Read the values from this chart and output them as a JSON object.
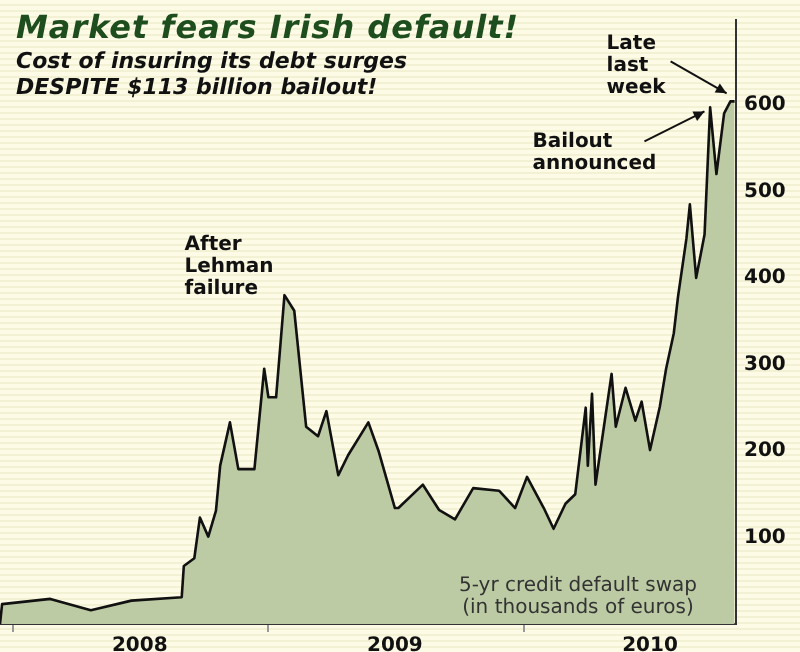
{
  "chart_data": {
    "type": "area",
    "title": "Market fears Irish default!",
    "subtitle": "Cost of insuring its debt surges\nDESPITE $113 billion bailout!",
    "annotations": [
      {
        "text": "After\nLehman\nfailure",
        "x": "2009-01-24",
        "y": 380
      },
      {
        "text": "Bailout\nannounced",
        "x": "2010-10-04",
        "y": 597
      },
      {
        "text": "Late\nlast\nweek",
        "x": "2010-10-30",
        "y": 604
      },
      "5-yr credit default swap\n(in thousands of euros)"
    ],
    "x": [
      "2007-12-14",
      "2007-12-17",
      "2008-02-24",
      "2008-04-22",
      "2008-06-19",
      "2008-08-30",
      "2008-09-02",
      "2008-09-17",
      "2008-09-25",
      "2008-10-07",
      "2008-10-18",
      "2008-10-24",
      "2008-11-07",
      "2008-11-19",
      "2008-12-12",
      "2008-12-26",
      "2009-01-01",
      "2009-01-12",
      "2009-01-24",
      "2009-02-07",
      "2009-02-24",
      "2009-03-13",
      "2009-03-25",
      "2009-04-11",
      "2009-04-25",
      "2009-05-24",
      "2009-06-08",
      "2009-07-01",
      "2009-07-06",
      "2009-08-10",
      "2009-09-02",
      "2009-09-25",
      "2009-10-21",
      "2009-11-27",
      "2009-12-20",
      "2010-01-06",
      "2010-01-30",
      "2010-02-13",
      "2010-03-02",
      "2010-03-16",
      "2010-03-31",
      "2010-04-03",
      "2010-04-09",
      "2010-04-14",
      "2010-04-26",
      "2010-05-07",
      "2010-05-13",
      "2010-05-27",
      "2010-06-10",
      "2010-06-19",
      "2010-07-01",
      "2010-07-15",
      "2010-07-24",
      "2010-08-04",
      "2010-08-10",
      "2010-08-22",
      "2010-08-27",
      "2010-09-05",
      "2010-09-17",
      "2010-09-25",
      "2010-10-04",
      "2010-10-15",
      "2010-10-24",
      "2010-10-30"
    ],
    "series": [
      {
        "color": "#bccba4",
        "values": [
          0,
          23,
          29,
          16,
          27,
          31,
          67,
          76,
          123,
          101,
          131,
          183,
          233,
          179,
          179,
          295,
          262,
          262,
          380,
          362,
          228,
          217,
          246,
          172,
          195,
          233,
          199,
          134,
          134,
          161,
          132,
          121,
          157,
          154,
          134,
          170,
          134,
          110,
          139,
          150,
          250,
          183,
          266,
          161,
          228,
          289,
          228,
          273,
          235,
          257,
          201,
          251,
          295,
          336,
          378,
          445,
          485,
          400,
          450,
          597,
          520,
          590,
          604,
          604
        ]
      }
    ],
    "xlim": [
      "2007-12-14",
      "2010-11-01"
    ],
    "xticks": [
      {
        "value": "2008-01-01",
        "label": null
      },
      {
        "value": "2008-07-01",
        "label": "2008"
      },
      {
        "value": "2009-01-01",
        "label": null
      },
      {
        "value": "2009-07-01",
        "label": "2009"
      },
      {
        "value": "2010-01-01",
        "label": null
      },
      {
        "value": "2010-07-01",
        "label": "2010"
      }
    ],
    "ylim": [
      0,
      698
    ],
    "yticks": [
      100,
      200,
      300,
      400,
      500,
      600
    ],
    "legend": false,
    "grid": false
  }
}
